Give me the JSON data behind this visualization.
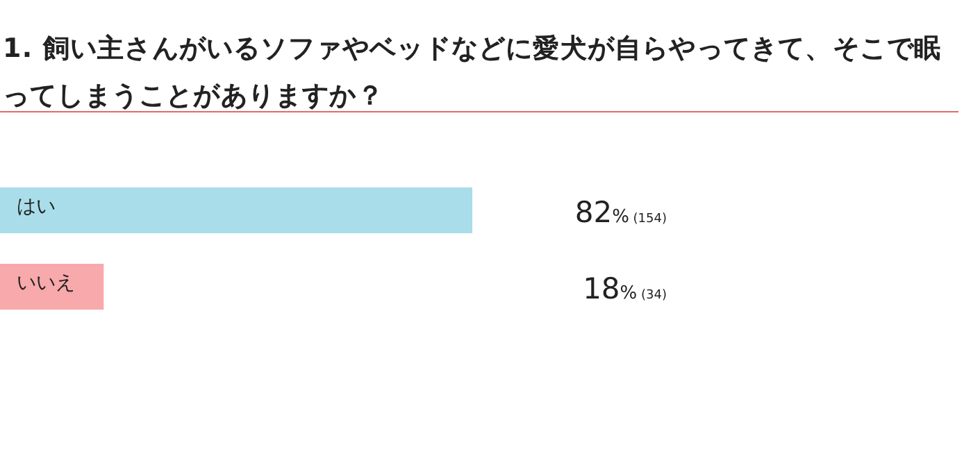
{
  "chart_data": {
    "type": "bar",
    "orientation": "horizontal",
    "title": "1. 飼い主さんがいるソファやベッドなどに愛犬が自らやってきて、そこで眠ってしまうことがありますか？",
    "categories": [
      "はい",
      "いいえ"
    ],
    "values": [
      82,
      18
    ],
    "colors": [
      "#a9dde9",
      "#f8a9ab"
    ],
    "value_labels": [
      "82% (154)",
      "18% (34)"
    ]
  }
}
